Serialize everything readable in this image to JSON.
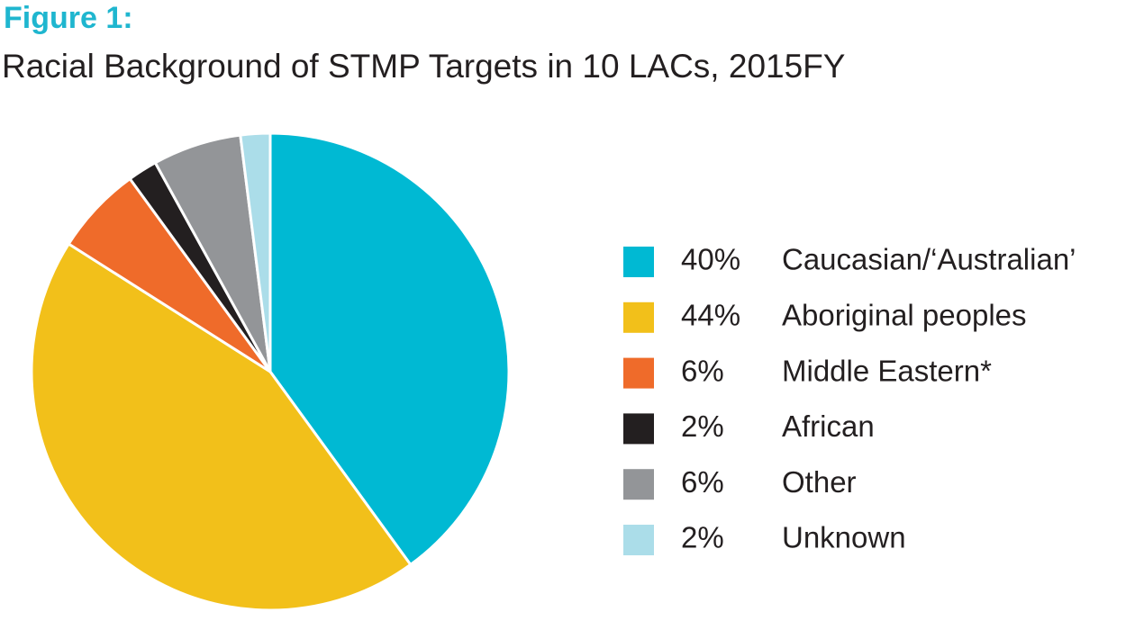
{
  "chart_data": {
    "type": "pie",
    "title": "Figure 1:",
    "subtitle": "Racial Background of STMP Targets in 10 LACs, 2015FY",
    "categories": [
      "Caucasian/‘Australian’",
      "Aboriginal peoples",
      "Middle Eastern*",
      "African",
      "Other",
      "Unknown"
    ],
    "values": [
      40,
      44,
      6,
      2,
      6,
      2
    ],
    "value_labels": [
      "40%",
      "44%",
      "6%",
      "2%",
      "6%",
      "2%"
    ],
    "colors": [
      "#00b9d3",
      "#f2c01a",
      "#ef6b2a",
      "#231f20",
      "#939598",
      "#abdde9"
    ]
  }
}
